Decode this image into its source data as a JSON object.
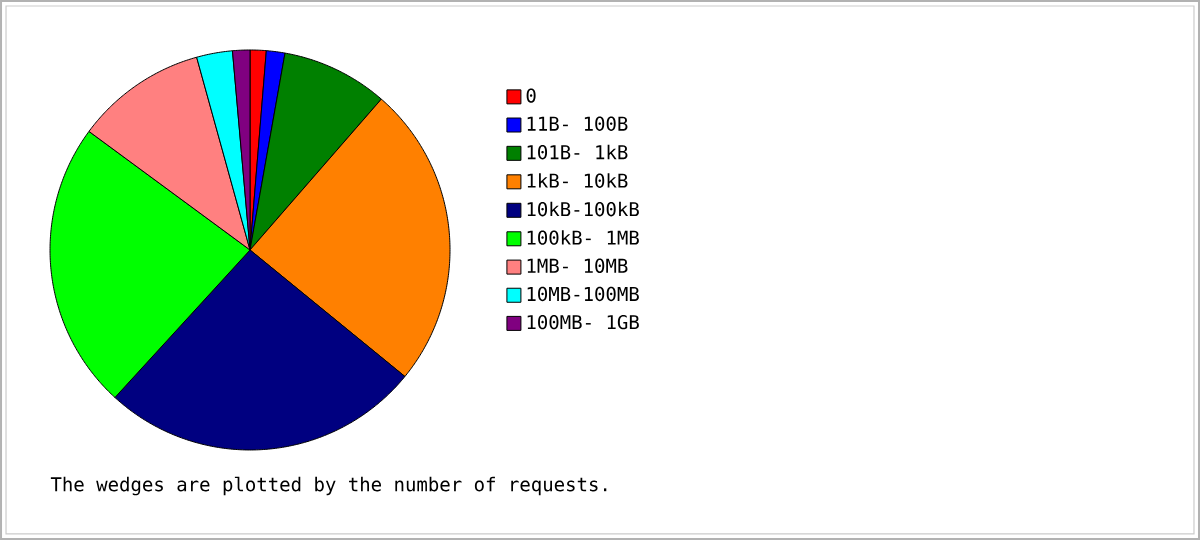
{
  "chart_data": {
    "type": "pie",
    "categories": [
      "0",
      "11B- 100B",
      "101B-  1kB",
      "1kB- 10kB",
      "10kB-100kB",
      "100kB-  1MB",
      "1MB- 10MB",
      "10MB-100MB",
      "100MB-  1GB"
    ],
    "values": [
      1.3,
      1.5,
      8.6,
      24.5,
      25.9,
      23.3,
      10.6,
      2.9,
      1.4
    ],
    "colors": [
      "#ff0000",
      "#0000ff",
      "#008000",
      "#ff8000",
      "#000080",
      "#00ff00",
      "#ff8080",
      "#00ffff",
      "#800080"
    ],
    "legend": "right",
    "annotations": [
      "The wedges are plotted by the number of requests."
    ]
  }
}
